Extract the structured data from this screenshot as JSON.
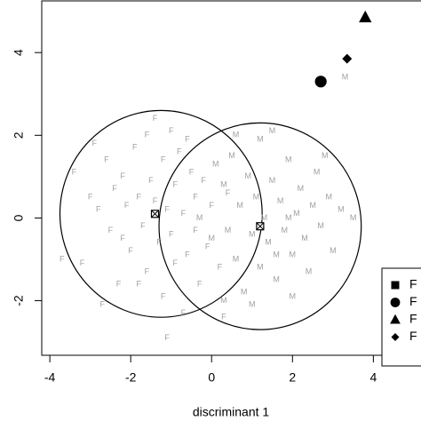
{
  "chart_data": {
    "type": "scatter",
    "xlabel": "discriminant 1",
    "xlim": [
      -4.2,
      5.2
    ],
    "ylim": [
      -3.32,
      5.25
    ],
    "xticks": [
      -4,
      -2,
      0,
      2,
      4
    ],
    "yticks": [
      -2,
      0,
      2,
      4
    ],
    "series": [
      {
        "marker": "F",
        "color": "#a0a0a0",
        "x": [
          -3.4,
          -3.2,
          -3.0,
          -2.8,
          -2.6,
          -2.5,
          -2.4,
          -2.3,
          -2.2,
          -2.1,
          -2.0,
          -1.9,
          -1.8,
          -1.7,
          -1.6,
          -1.6,
          -1.5,
          -1.4,
          -1.3,
          -1.2,
          -1.2,
          -1.1,
          -1.0,
          -1.0,
          -0.9,
          -0.9,
          -0.8,
          -0.7,
          -0.7,
          -0.6,
          -0.5,
          -0.4,
          -0.4,
          -0.3,
          -0.2,
          -0.1,
          0.0,
          0.2,
          0.4,
          -3.7,
          -2.7,
          -1.1,
          -1.8,
          -2.9,
          -0.6,
          0.3,
          -1.4,
          -2.2
        ],
        "y": [
          1.1,
          -1.1,
          0.5,
          0.2,
          1.4,
          -0.3,
          0.7,
          -1.6,
          1.0,
          0.3,
          -0.8,
          1.7,
          0.5,
          -0.2,
          2.0,
          -1.3,
          0.9,
          0.4,
          -0.6,
          1.4,
          -1.9,
          0.2,
          2.1,
          -0.4,
          0.8,
          -1.1,
          1.6,
          0.1,
          -2.3,
          -0.9,
          1.1,
          0.5,
          -0.3,
          -1.6,
          0.9,
          -0.7,
          0.3,
          -1.2,
          0.6,
          -1.0,
          -2.1,
          -2.9,
          -1.6,
          1.8,
          1.9,
          -2.4,
          2.4,
          -0.5
        ]
      },
      {
        "marker": "M",
        "color": "#a0a0a0",
        "x": [
          -0.3,
          0.0,
          0.3,
          0.4,
          0.5,
          0.6,
          0.7,
          0.8,
          0.9,
          1.0,
          1.1,
          1.2,
          1.2,
          1.3,
          1.4,
          1.5,
          1.6,
          1.7,
          1.8,
          1.9,
          2.0,
          2.1,
          2.2,
          2.3,
          2.4,
          2.5,
          2.6,
          2.7,
          2.9,
          3.0,
          3.2,
          3.5,
          0.6,
          1.0,
          1.5,
          2.0,
          3.3,
          0.1,
          1.6,
          2.8,
          0.3,
          1.9
        ],
        "y": [
          0.0,
          -0.5,
          0.8,
          -0.3,
          1.5,
          -1.0,
          0.3,
          -1.8,
          1.0,
          -0.4,
          0.5,
          1.9,
          -1.2,
          0.0,
          -0.6,
          0.9,
          -1.5,
          0.4,
          -0.3,
          1.4,
          -0.9,
          0.1,
          0.7,
          -0.5,
          -1.3,
          0.3,
          1.1,
          -0.2,
          0.5,
          -0.8,
          0.2,
          0.0,
          2.0,
          -2.1,
          2.1,
          -1.9,
          3.4,
          1.3,
          -0.9,
          1.5,
          -2.0,
          0.0
        ]
      }
    ],
    "centroids": {
      "x": [
        -1.4,
        1.2
      ],
      "y": [
        0.1,
        -0.2
      ]
    },
    "circles": {
      "cx": [
        -1.25,
        1.2
      ],
      "cy": [
        0.1,
        -0.2
      ],
      "r": [
        2.5,
        2.5
      ]
    },
    "points": {
      "shape": [
        "circle",
        "diamond",
        "triangle"
      ],
      "x": [
        2.7,
        3.35,
        3.8
      ],
      "y": [
        3.3,
        3.85,
        4.85
      ]
    },
    "legend": {
      "labels": [
        "F",
        "F",
        "F",
        "F"
      ],
      "shapes": [
        "square",
        "circle",
        "triangle",
        "diamond"
      ]
    }
  }
}
